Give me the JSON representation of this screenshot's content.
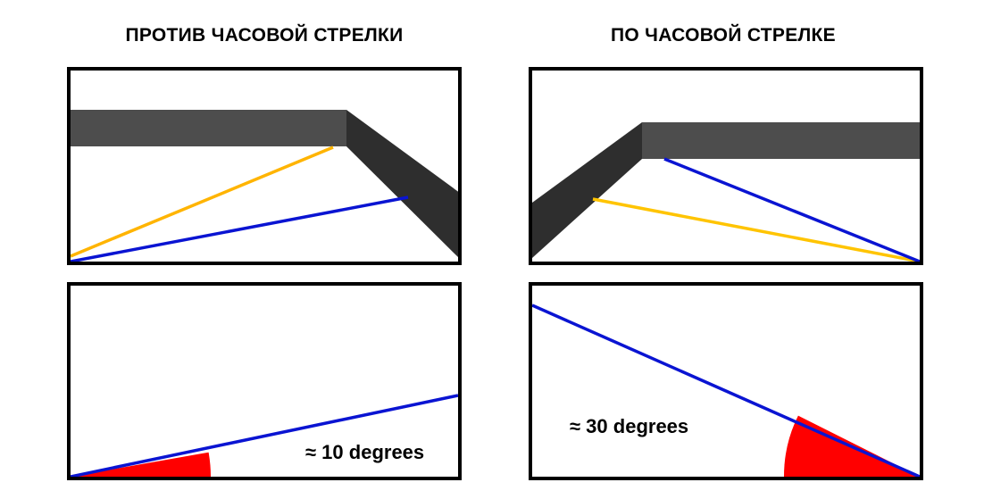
{
  "titles": {
    "counterclockwise": "ПРОТИВ ЧАСОВОЙ СТРЕЛКИ",
    "clockwise": "ПО ЧАСОВОЙ СТРЕЛКЕ"
  },
  "angle_labels": {
    "counterclockwise": "≈ 10 degrees",
    "clockwise": "≈ 30 degrees"
  },
  "colors": {
    "border": "#000000",
    "beam_front": "#4d4d4d",
    "beam_side": "#2e2e2e",
    "orange_line": "#ffb400",
    "blue_line": "#0a14d2",
    "angle_fill": "#ff0000"
  }
}
